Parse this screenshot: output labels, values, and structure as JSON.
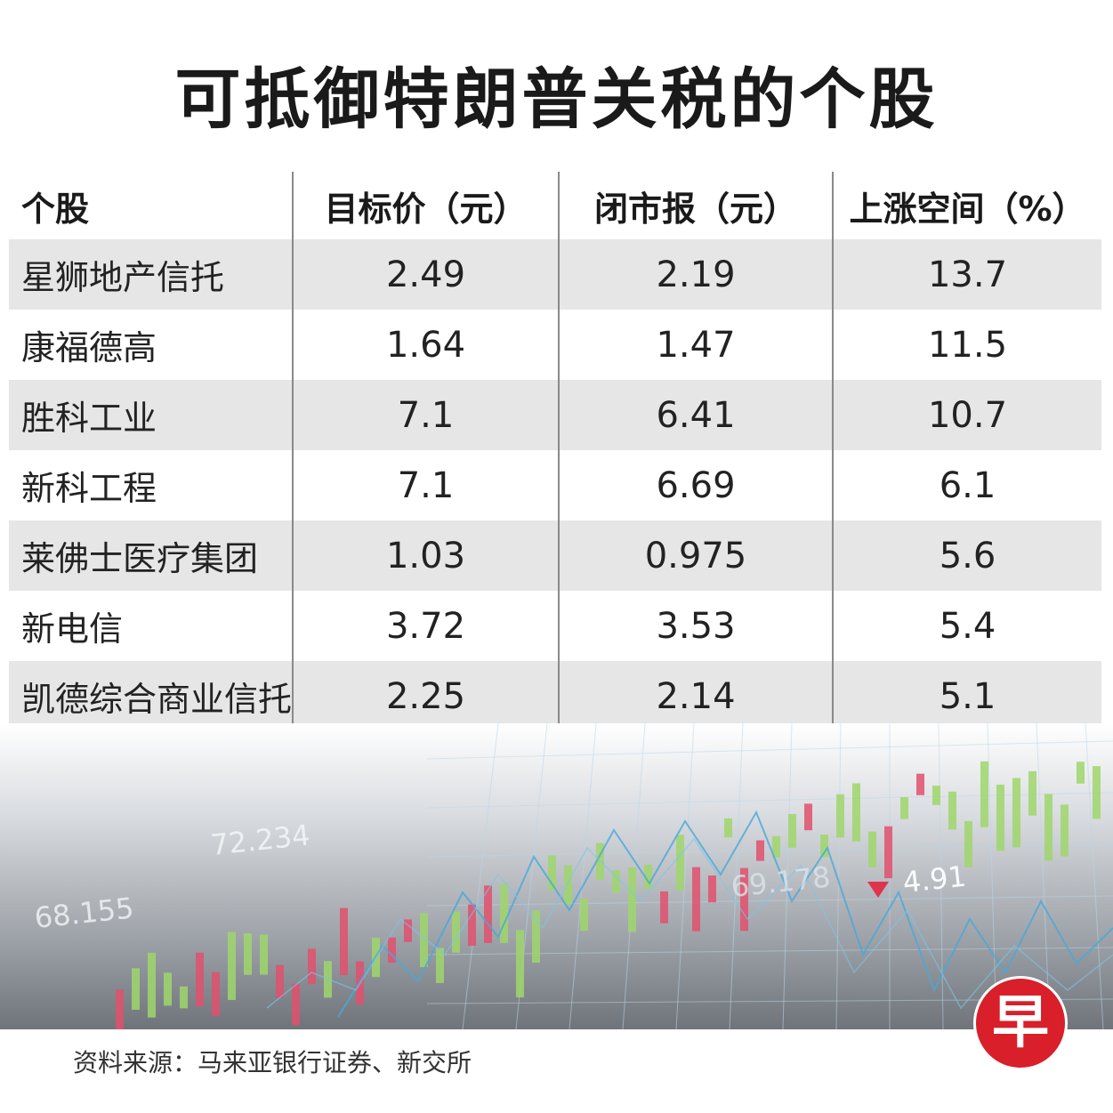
{
  "title": "可抵御特朗普关税的个股",
  "table": {
    "headers": [
      "个股",
      "目标价（元）",
      "闭市报（元）",
      "上涨空间（%）"
    ],
    "rows": [
      [
        "星狮地产信托",
        "2.49",
        "2.19",
        "13.7"
      ],
      [
        "康福德高",
        "1.64",
        "1.47",
        "11.5"
      ],
      [
        "胜科工业",
        "7.1",
        "6.41",
        "10.7"
      ],
      [
        "新科工程",
        "7.1",
        "6.69",
        "6.1"
      ],
      [
        "莱佛士医疗集团",
        "1.03",
        "0.975",
        "5.6"
      ],
      [
        "新电信",
        "3.72",
        "3.53",
        "5.4"
      ],
      [
        "凯德综合商业信托",
        "2.25",
        "2.14",
        "5.1"
      ]
    ]
  },
  "background_chart": {
    "tickers": [
      "72.234",
      "68.155",
      "69.178",
      "4.91"
    ]
  },
  "source": "资料来源：马来亚银行证券、新交所",
  "logo": {
    "char": "早",
    "color": "#d81f2a"
  }
}
